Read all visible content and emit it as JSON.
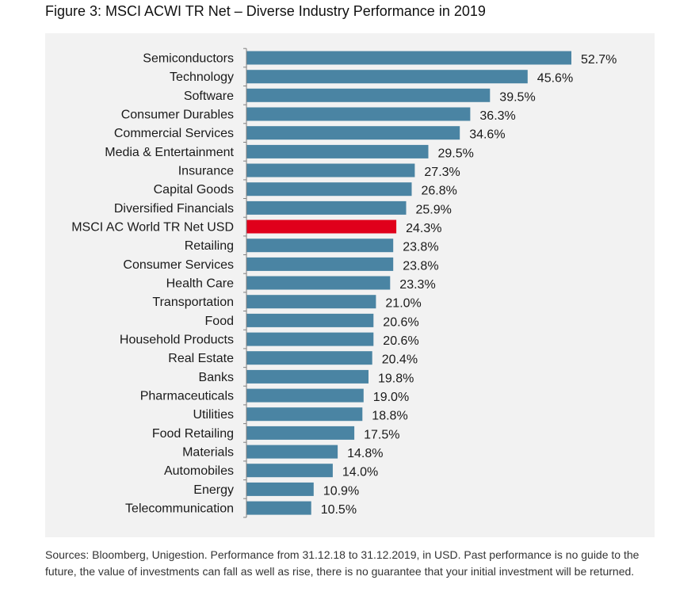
{
  "figure": {
    "title": "Figure 3: MSCI ACWI TR Net – Diverse Industry Performance in 2019",
    "sources": "Sources: Bloomberg, Unigestion. Performance from 31.12.18 to 31.12.2019, in USD. Past performance is no guide to the future, the value of investments can fall as well as rise, there is no guarantee that your initial investment will be returned."
  },
  "colors": {
    "bar": "#4a84a3",
    "highlight": "#e0001b",
    "panel": "#f2f2f2",
    "axis": "#7f7f7f"
  },
  "chart_data": {
    "type": "bar",
    "orientation": "horizontal",
    "categories": [
      "Semiconductors",
      "Technology",
      "Software",
      "Consumer Durables",
      "Commercial Services",
      "Media & Entertainment",
      "Insurance",
      "Capital Goods",
      "Diversified Financials",
      "MSCI AC World TR Net USD",
      "Retailing",
      "Consumer Services",
      "Health Care",
      "Transportation",
      "Food",
      "Household Products",
      "Real Estate",
      "Banks",
      "Pharmaceuticals",
      "Utilities",
      "Food Retailing",
      "Materials",
      "Automobiles",
      "Energy",
      "Telecommunication"
    ],
    "values": [
      52.7,
      45.6,
      39.5,
      36.3,
      34.6,
      29.5,
      27.3,
      26.8,
      25.9,
      24.3,
      23.8,
      23.8,
      23.3,
      21.0,
      20.6,
      20.6,
      20.4,
      19.8,
      19.0,
      18.8,
      17.5,
      14.8,
      14.0,
      10.9,
      10.5
    ],
    "data_labels": [
      "52.7%",
      "45.6%",
      "39.5%",
      "36.3%",
      "34.6%",
      "29.5%",
      "27.3%",
      "26.8%",
      "25.9%",
      "24.3%",
      "23.8%",
      "23.8%",
      "23.3%",
      "21.0%",
      "20.6%",
      "20.6%",
      "20.4%",
      "19.8%",
      "19.0%",
      "18.8%",
      "17.5%",
      "14.8%",
      "14.0%",
      "10.9%",
      "10.5%"
    ],
    "highlight_category": "MSCI AC World TR Net USD",
    "xlim": [
      0,
      52.7
    ],
    "grid": false,
    "legend": "none"
  }
}
